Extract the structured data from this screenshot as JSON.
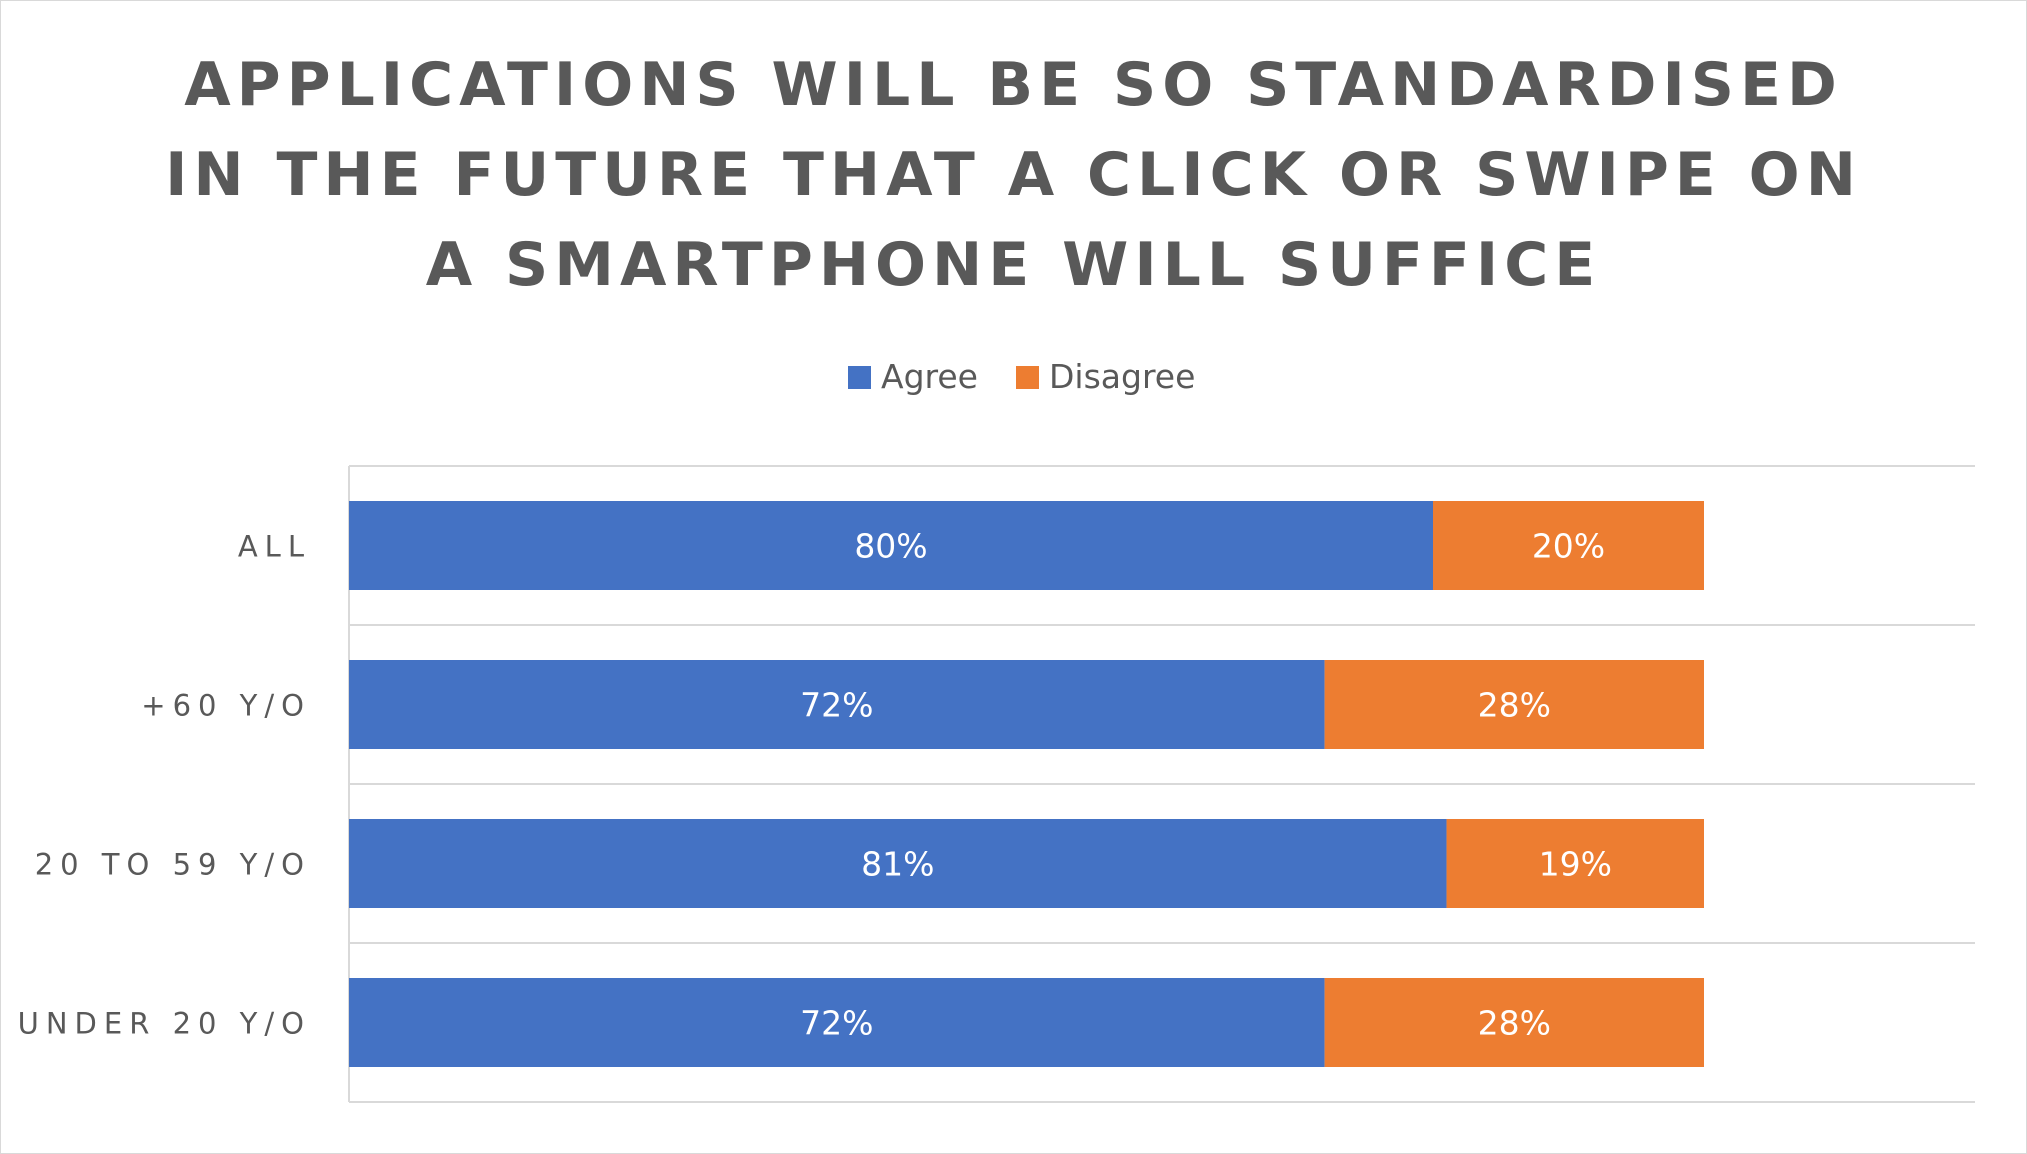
{
  "chart_data": {
    "type": "bar",
    "orientation": "horizontal",
    "stacked": true,
    "title": "APPLICATIONS WILL BE SO STANDARDISED IN THE FUTURE THAT A CLICK OR SWIPE ON A SMARTPHONE WILL SUFFICE",
    "categories": [
      "ALL",
      "+60 Y/O",
      "20 TO 59 Y/O",
      "UNDER 20 Y/O"
    ],
    "series": [
      {
        "name": "Agree",
        "color": "#4472c4",
        "values": [
          80,
          72,
          81,
          72
        ],
        "labels": [
          "80%",
          "72%",
          "81%",
          "72%"
        ]
      },
      {
        "name": "Disagree",
        "color": "#ed7d31",
        "values": [
          20,
          28,
          19,
          28
        ],
        "labels": [
          "20%",
          "28%",
          "19%",
          "28%"
        ]
      }
    ],
    "xlim": [
      0,
      120
    ],
    "legend_position": "top",
    "grid": "horizontal separators between categories"
  }
}
